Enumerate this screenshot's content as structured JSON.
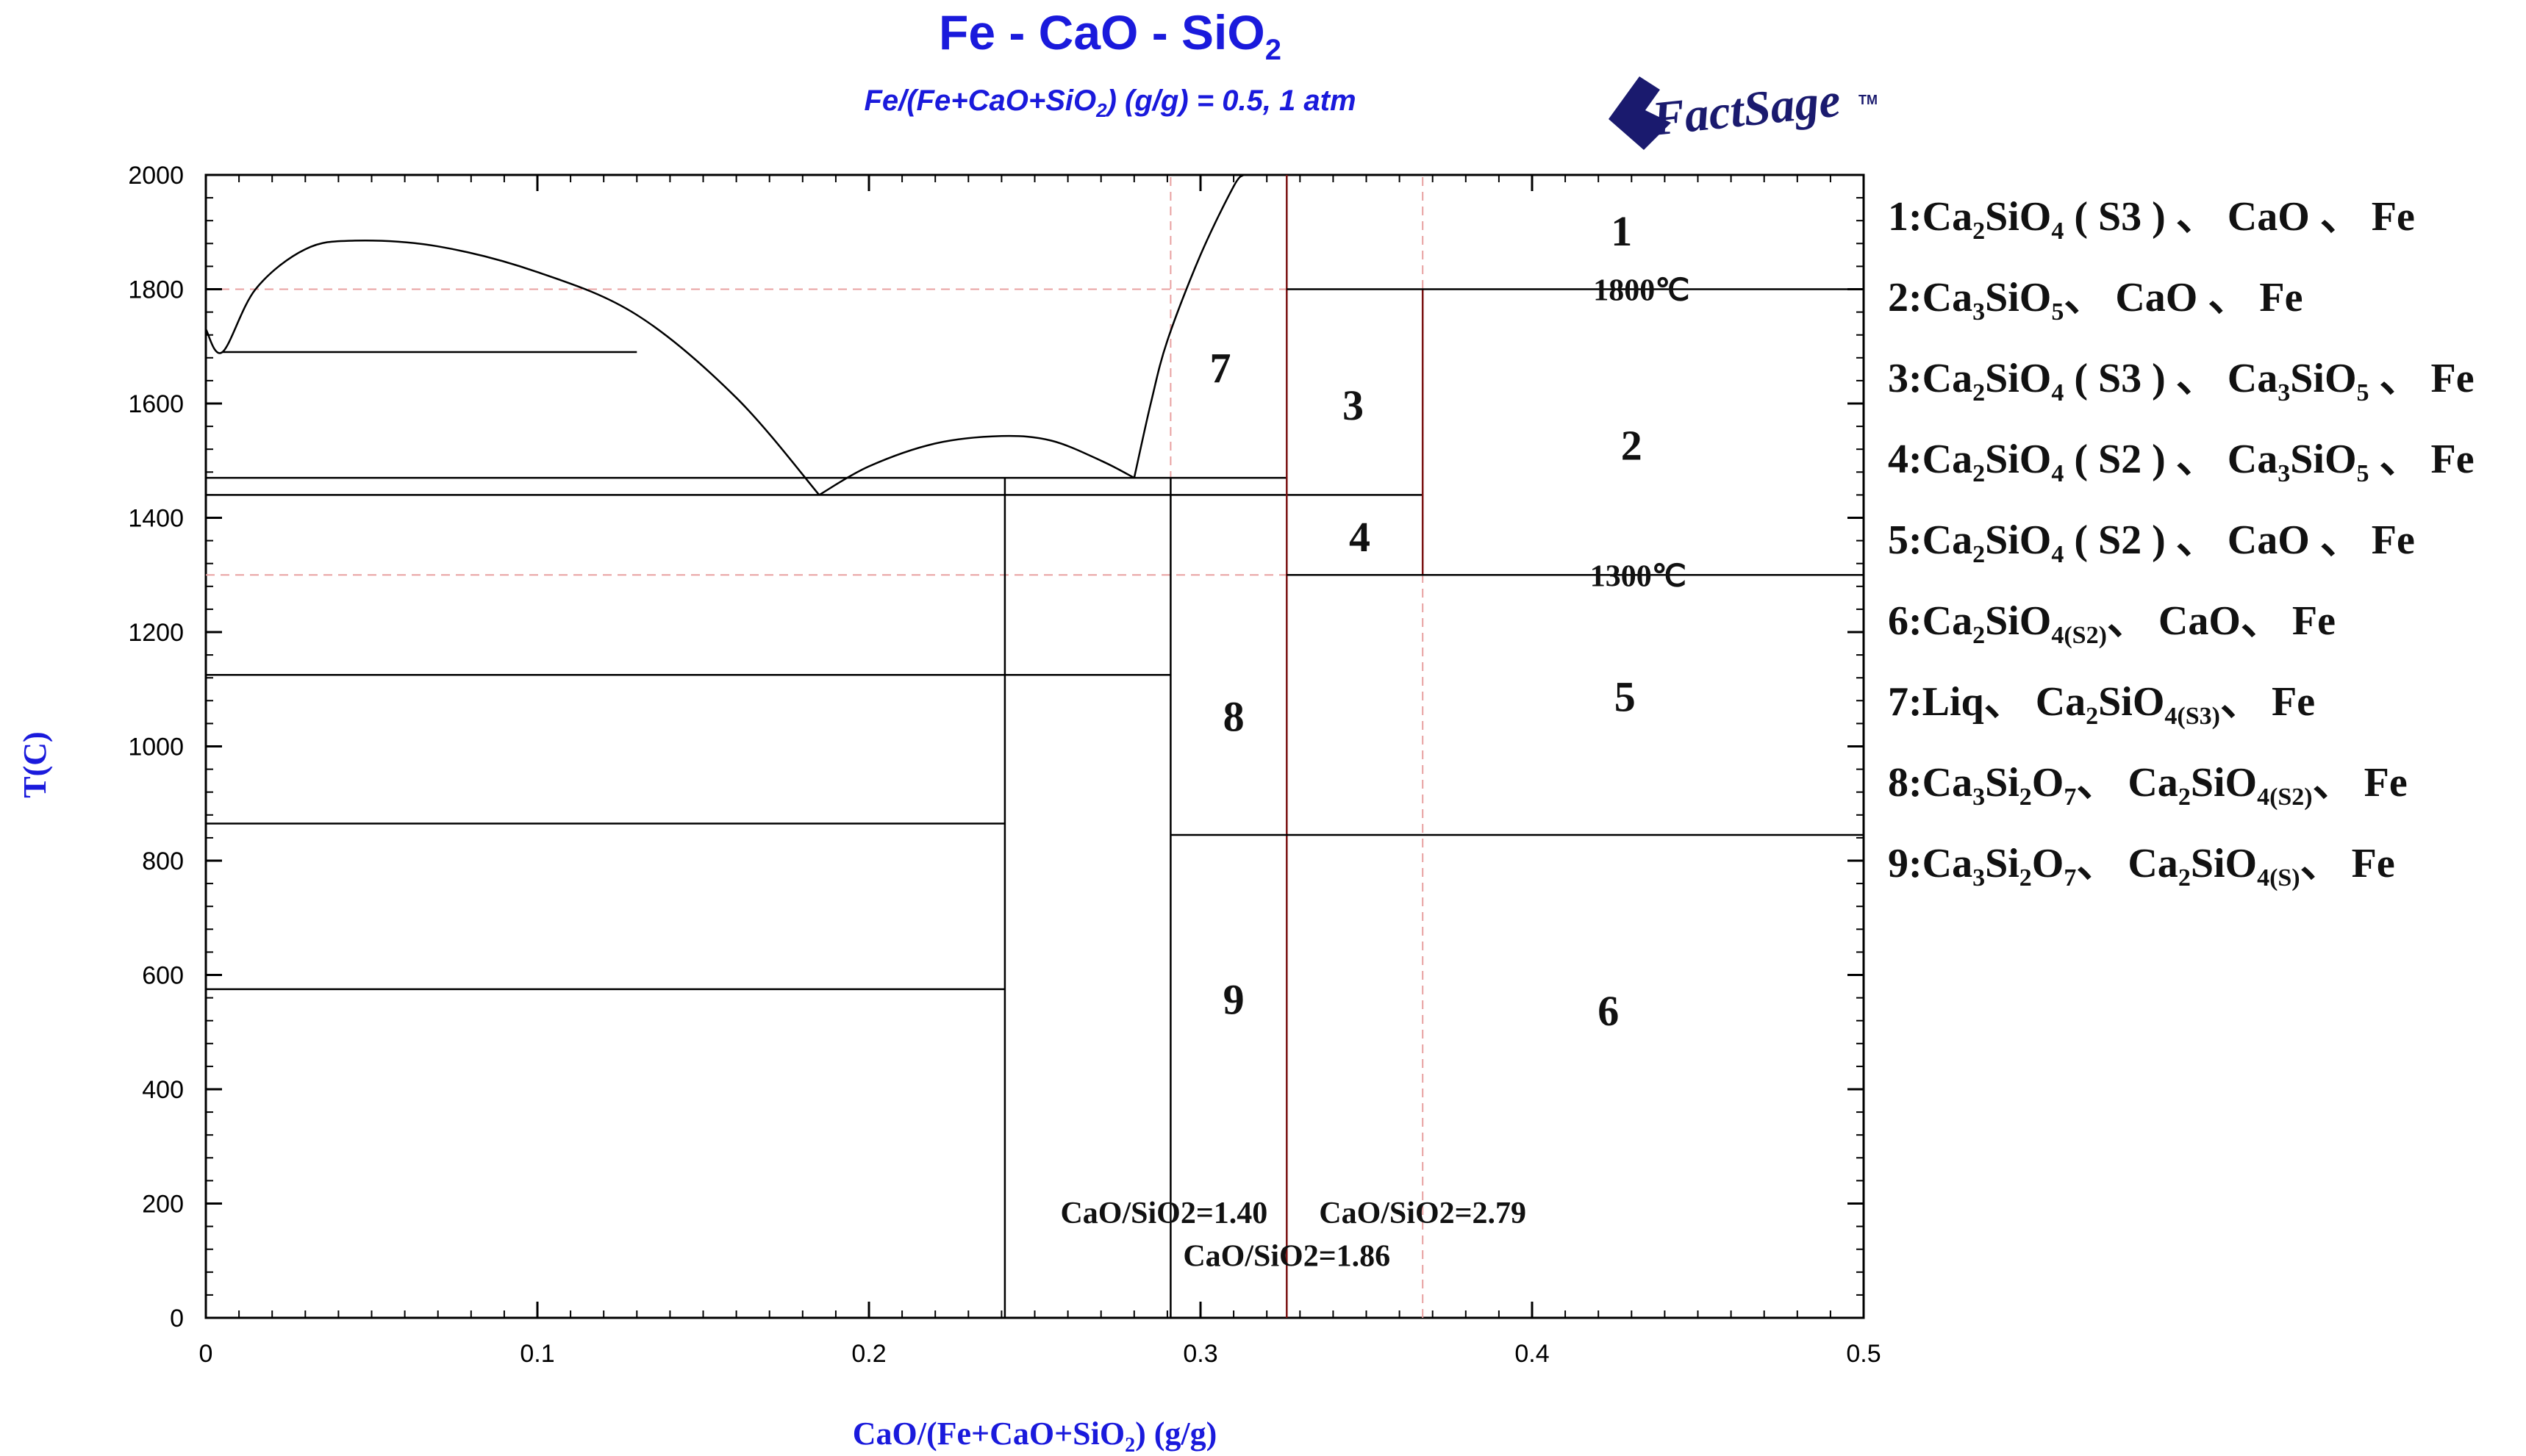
{
  "chart_data": {
    "type": "line",
    "title": "Fe - CaO - SiO",
    "title_subscript": "2",
    "subtitle_parts": [
      "Fe/(Fe+CaO+SiO",
      "2",
      ") (g/g)  = 0.5,  1 atm"
    ],
    "xlabel_parts": [
      "CaO/(Fe+CaO+SiO",
      "2",
      ") (g/g)"
    ],
    "ylabel": "T(C)",
    "xlim": [
      0,
      0.5
    ],
    "ylim": [
      0,
      2000
    ],
    "x_ticks": [
      0,
      0.1,
      0.2,
      0.3,
      0.4,
      0.5
    ],
    "x_tick_labels": [
      "0",
      "0.1",
      "0.2",
      "0.3",
      "0.4",
      "0.5"
    ],
    "y_ticks": [
      0,
      200,
      400,
      600,
      800,
      1000,
      1200,
      1400,
      1600,
      1800,
      2000
    ],
    "y_tick_labels": [
      "0",
      "200",
      "400",
      "600",
      "800",
      "1000",
      "1200",
      "1400",
      "1600",
      "1800",
      "2000"
    ],
    "grid": false,
    "colors": {
      "title": "#1a1adc",
      "lines": "#000000",
      "guides": "#e8a0a0",
      "dividers": "#7a1010"
    },
    "phase_boundaries": [
      {
        "points": [
          [
            0,
            1730
          ],
          [
            0.005,
            1690
          ],
          [
            0.015,
            1800
          ],
          [
            0.03,
            1870
          ],
          [
            0.045,
            1885
          ],
          [
            0.07,
            1875
          ],
          [
            0.1,
            1830
          ],
          [
            0.13,
            1755
          ],
          [
            0.16,
            1610
          ],
          [
            0.185,
            1440
          ]
        ]
      },
      {
        "points": [
          [
            0.185,
            1440
          ],
          [
            0.2,
            1490
          ],
          [
            0.22,
            1530
          ],
          [
            0.24,
            1543
          ],
          [
            0.255,
            1535
          ],
          [
            0.27,
            1500
          ],
          [
            0.28,
            1470
          ]
        ]
      },
      {
        "points": [
          [
            0.28,
            1470
          ],
          [
            0.285,
            1600
          ],
          [
            0.29,
            1710
          ],
          [
            0.3,
            1860
          ],
          [
            0.31,
            1980
          ],
          [
            0.313,
            2000
          ]
        ]
      },
      {
        "points": [
          [
            0.005,
            1690
          ],
          [
            0.13,
            1690
          ]
        ]
      },
      {
        "points": [
          [
            0,
            1470
          ],
          [
            0.326,
            1470
          ]
        ]
      },
      {
        "points": [
          [
            0,
            1440
          ],
          [
            0.367,
            1440
          ]
        ]
      },
      {
        "points": [
          [
            0,
            1125
          ],
          [
            0.291,
            1125
          ]
        ]
      },
      {
        "points": [
          [
            0,
            865
          ],
          [
            0.241,
            865
          ]
        ]
      },
      {
        "points": [
          [
            0,
            575
          ],
          [
            0.241,
            575
          ]
        ]
      },
      {
        "points": [
          [
            0.241,
            0
          ],
          [
            0.241,
            1470
          ]
        ]
      },
      {
        "points": [
          [
            0.291,
            0
          ],
          [
            0.291,
            1470
          ]
        ]
      },
      {
        "points": [
          [
            0.326,
            0
          ],
          [
            0.326,
            2000
          ]
        ]
      },
      {
        "points": [
          [
            0.367,
            1300
          ],
          [
            0.367,
            1800
          ]
        ]
      },
      {
        "points": [
          [
            0.326,
            1800
          ],
          [
            0.5,
            1800
          ]
        ]
      },
      {
        "points": [
          [
            0.326,
            1300
          ],
          [
            0.5,
            1300
          ]
        ]
      },
      {
        "points": [
          [
            0.291,
            845
          ],
          [
            0.5,
            845
          ]
        ]
      }
    ],
    "guide_lines": [
      {
        "points": [
          [
            0.291,
            0
          ],
          [
            0.291,
            2000
          ]
        ]
      },
      {
        "points": [
          [
            0.367,
            0
          ],
          [
            0.367,
            2000
          ]
        ]
      },
      {
        "points": [
          [
            0,
            1800
          ],
          [
            0.5,
            1800
          ]
        ]
      },
      {
        "points": [
          [
            0,
            1300
          ],
          [
            0.5,
            1300
          ]
        ]
      }
    ],
    "region_labels": [
      {
        "text": "1",
        "x": 0.427,
        "y": 1905
      },
      {
        "text": "2",
        "x": 0.43,
        "y": 1530
      },
      {
        "text": "3",
        "x": 0.346,
        "y": 1600
      },
      {
        "text": "4",
        "x": 0.348,
        "y": 1370
      },
      {
        "text": "5",
        "x": 0.428,
        "y": 1090
      },
      {
        "text": "6",
        "x": 0.423,
        "y": 540
      },
      {
        "text": "7",
        "x": 0.306,
        "y": 1665
      },
      {
        "text": "8",
        "x": 0.31,
        "y": 1055
      },
      {
        "text": "9",
        "x": 0.31,
        "y": 560
      }
    ],
    "annotations": [
      {
        "text": "1800℃",
        "x": 0.433,
        "y": 1800
      },
      {
        "text": "1300℃",
        "x": 0.432,
        "y": 1300
      },
      {
        "text": "CaO/SiO2=1.40",
        "x": 0.289,
        "y": 185
      },
      {
        "text": "CaO/SiO2=2.79",
        "x": 0.367,
        "y": 185
      },
      {
        "text": "CaO/SiO2=1.86",
        "x": 0.326,
        "y": 110
      }
    ]
  },
  "logo": {
    "text": "FactSage",
    "mark": "TM",
    "color": "#1a1a6e"
  },
  "legend": [
    {
      "parts": [
        "1:Ca",
        "2",
        "SiO",
        "4",
        " ( S3 ) 、 CaO 、 Fe"
      ],
      "subs": [
        1,
        3
      ]
    },
    {
      "parts": [
        "2:Ca",
        "3",
        "SiO",
        "5",
        "、 CaO 、 Fe"
      ],
      "subs": [
        1,
        3
      ]
    },
    {
      "parts": [
        "3:Ca",
        "2",
        "SiO",
        "4",
        " ( S3 ) 、 Ca",
        "3",
        "SiO",
        "5",
        " 、 Fe"
      ],
      "subs": [
        1,
        3,
        5,
        7
      ]
    },
    {
      "parts": [
        "4:Ca",
        "2",
        "SiO",
        "4",
        " ( S2 ) 、 Ca",
        "3",
        "SiO",
        "5",
        " 、 Fe"
      ],
      "subs": [
        1,
        3,
        5,
        7
      ]
    },
    {
      "parts": [
        "5:Ca",
        "2",
        "SiO",
        "4",
        " ( S2 ) 、 CaO 、 Fe"
      ],
      "subs": [
        1,
        3
      ]
    },
    {
      "parts": [
        "6:Ca",
        "2",
        "SiO",
        "4(S2)",
        "、 CaO、 Fe"
      ],
      "subs": [
        1,
        3
      ]
    },
    {
      "parts": [
        "7:Liq、 Ca",
        "2",
        "SiO",
        "4(S3)",
        "、 Fe"
      ],
      "subs": [
        1,
        3
      ]
    },
    {
      "parts": [
        "8:Ca",
        "3",
        "Si",
        "2",
        "O",
        "7",
        "、 Ca",
        "2",
        "SiO",
        "4(S2)",
        "、 Fe"
      ],
      "subs": [
        1,
        3,
        5,
        7,
        9
      ]
    },
    {
      "parts": [
        "9:Ca",
        "3",
        "Si",
        "2",
        "O",
        "7",
        "、 Ca",
        "2",
        "SiO",
        "4(S)",
        "、 Fe"
      ],
      "subs": [
        1,
        3,
        5,
        7,
        9
      ]
    }
  ]
}
